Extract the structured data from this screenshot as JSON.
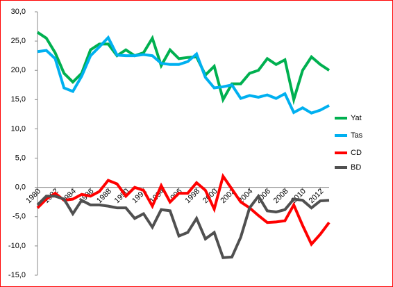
{
  "chart_data": {
    "type": "line",
    "x": [
      1980,
      1981,
      1982,
      1983,
      1984,
      1985,
      1986,
      1987,
      1988,
      1989,
      1990,
      1991,
      1992,
      1993,
      1994,
      1995,
      1996,
      1997,
      1998,
      1999,
      2000,
      2001,
      2002,
      2003,
      2004,
      2005,
      2006,
      2007,
      2008,
      2009,
      2010,
      2011,
      2012,
      2013
    ],
    "xlim": [
      1980,
      2013
    ],
    "xticks": [
      1980,
      1982,
      1984,
      1986,
      1988,
      1990,
      1992,
      1994,
      1996,
      1998,
      2000,
      2002,
      2004,
      2006,
      2008,
      2010,
      2012
    ],
    "ylim": [
      -15,
      30
    ],
    "yticks": [
      {
        "value": -15,
        "label": "-15,0"
      },
      {
        "value": -10,
        "label": "-10,0"
      },
      {
        "value": -5,
        "label": "-5,0"
      },
      {
        "value": 0,
        "label": "0,0"
      },
      {
        "value": 5,
        "label": "5,0"
      },
      {
        "value": 10,
        "label": "10,0"
      },
      {
        "value": 15,
        "label": "15,0"
      },
      {
        "value": 20,
        "label": "20,0"
      },
      {
        "value": 25,
        "label": "25,0"
      },
      {
        "value": 30,
        "label": "30,0"
      }
    ],
    "grid": false,
    "legend": "right",
    "series": [
      {
        "name": "Yat",
        "color": "#00b050",
        "values": [
          26.5,
          25.5,
          23,
          19.5,
          18,
          19.5,
          23.5,
          24.5,
          24.5,
          22.5,
          23.5,
          22.5,
          23,
          25.5,
          20.8,
          23.5,
          22,
          22.2,
          22.3,
          19.2,
          20.7,
          15,
          17.7,
          17.7,
          19.5,
          20,
          22,
          21,
          21.8,
          15,
          20,
          22.3,
          21,
          20
        ]
      },
      {
        "name": "Tas",
        "color": "#00b0f0",
        "values": [
          23.2,
          23.4,
          22,
          17,
          16.4,
          19,
          22.5,
          24,
          25.6,
          22.6,
          22.5,
          22.5,
          22.7,
          22.5,
          21.2,
          21,
          21,
          21.5,
          22.8,
          18.8,
          17,
          17.2,
          17.5,
          15.2,
          15.7,
          15.4,
          15.8,
          15.2,
          16,
          12.8,
          13.6,
          12.7,
          13.2,
          14
        ]
      },
      {
        "name": "CD",
        "color": "#ff0000",
        "values": [
          -3.5,
          -2,
          -1,
          -2.2,
          -2,
          -1.2,
          -1.5,
          -0.7,
          1.2,
          0.6,
          -1.5,
          0,
          -0.5,
          -3.2,
          0.3,
          -2.5,
          -1,
          -1,
          0.8,
          -0.5,
          -3.7,
          1.9,
          -0.3,
          -2.5,
          -3.5,
          -4.8,
          -6,
          -5.9,
          -5.7,
          -3,
          -6.5,
          -9.7,
          -8,
          -6
        ]
      },
      {
        "name": "BD",
        "color": "#505050",
        "values": [
          -3,
          -1.5,
          -1.5,
          -2,
          -4.5,
          -2.2,
          -3,
          -3,
          -3.2,
          -3.5,
          -3.5,
          -5.3,
          -4.5,
          -6.8,
          -3.8,
          -4,
          -8.3,
          -7.7,
          -5.3,
          -8.8,
          -7.7,
          -12,
          -11.9,
          -8.5,
          -3.5,
          -1.5,
          -4,
          -4.2,
          -3.8,
          -2,
          -2.2,
          -3.5,
          -2.3,
          -2.2
        ]
      }
    ]
  }
}
